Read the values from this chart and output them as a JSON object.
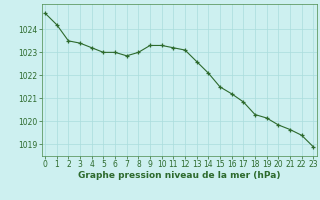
{
  "x": [
    0,
    1,
    2,
    3,
    4,
    5,
    6,
    7,
    8,
    9,
    10,
    11,
    12,
    13,
    14,
    15,
    16,
    17,
    18,
    19,
    20,
    21,
    22,
    23
  ],
  "y": [
    1024.7,
    1024.2,
    1023.5,
    1023.4,
    1023.2,
    1023.0,
    1023.0,
    1022.85,
    1023.0,
    1023.3,
    1023.3,
    1023.2,
    1023.1,
    1022.6,
    1022.1,
    1021.5,
    1021.2,
    1020.85,
    1020.3,
    1020.15,
    1019.85,
    1019.65,
    1019.4,
    1018.9
  ],
  "line_color": "#2d6a2d",
  "marker": "+",
  "marker_size": 3,
  "background_color": "#cdf0f0",
  "grid_color": "#aadddd",
  "xlabel": "Graphe pression niveau de la mer (hPa)",
  "yticks": [
    1019,
    1020,
    1021,
    1022,
    1023,
    1024
  ],
  "xticks": [
    0,
    1,
    2,
    3,
    4,
    5,
    6,
    7,
    8,
    9,
    10,
    11,
    12,
    13,
    14,
    15,
    16,
    17,
    18,
    19,
    20,
    21,
    22,
    23
  ],
  "ylim": [
    1018.5,
    1025.1
  ],
  "xlim": [
    -0.3,
    23.3
  ],
  "tick_color": "#2d6a2d",
  "tick_fontsize": 5.5,
  "xlabel_fontsize": 6.5,
  "xlabel_color": "#2d6a2d",
  "spine_color": "#4a8a4a"
}
